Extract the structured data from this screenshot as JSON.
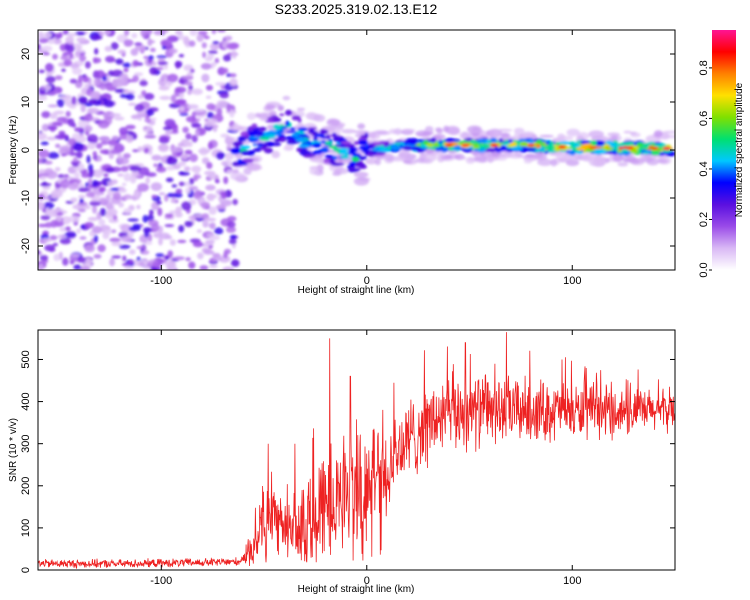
{
  "title": "S233.2025.319.02.13.E12",
  "chart_data": [
    {
      "type": "heatmap",
      "name": "spectrogram",
      "xlabel": "Height of straight line (km)",
      "ylabel": "Frequency (Hz)",
      "xlim": [
        -160,
        150
      ],
      "ylim": [
        -25,
        25
      ],
      "x_ticks": [
        -100,
        0,
        100
      ],
      "x_tick_labels": [
        "-100",
        "0",
        "100"
      ],
      "y_ticks": [
        -20,
        -10,
        0,
        10,
        20
      ],
      "y_tick_labels": [
        "-20",
        "-10",
        "0",
        "10",
        "20"
      ],
      "noise_region_x": [
        -160,
        -64
      ],
      "signal_band_center_hz": [
        {
          "x": -62,
          "f": -1
        },
        {
          "x": -55,
          "f": 2
        },
        {
          "x": -48,
          "f": 3
        },
        {
          "x": -40,
          "f": 5
        },
        {
          "x": -35,
          "f": 4
        },
        {
          "x": -30,
          "f": 2
        },
        {
          "x": -22,
          "f": 1
        },
        {
          "x": -14,
          "f": 0
        },
        {
          "x": -8,
          "f": -2
        },
        {
          "x": 0,
          "f": 0
        },
        {
          "x": 20,
          "f": 1
        },
        {
          "x": 40,
          "f": 1
        },
        {
          "x": 60,
          "f": 1
        },
        {
          "x": 80,
          "f": 1
        },
        {
          "x": 100,
          "f": 0.5
        },
        {
          "x": 120,
          "f": 0.5
        },
        {
          "x": 148,
          "f": 0.3
        }
      ],
      "colorbar": {
        "label": "Normalized spectral amplitude",
        "range": [
          0,
          0.95
        ],
        "ticks": [
          0,
          0.2,
          0.4,
          0.6,
          0.8
        ],
        "tick_labels": [
          "0.0",
          "0.2",
          "0.4",
          "0.6",
          "0.8"
        ],
        "colors": [
          "#ffffff",
          "#d9b8f5",
          "#9a4be8",
          "#5a10e0",
          "#0000ff",
          "#00c8ff",
          "#00e070",
          "#80e000",
          "#ffe000",
          "#ff8000",
          "#ff0000",
          "#ff1493"
        ]
      }
    },
    {
      "type": "line",
      "name": "snr",
      "xlabel": "Height of straight line (km)",
      "ylabel": "SNR (10 * v/v)",
      "xlim": [
        -160,
        150
      ],
      "ylim": [
        0,
        570
      ],
      "x_ticks": [
        -100,
        0,
        100
      ],
      "x_tick_labels": [
        "-100",
        "0",
        "100"
      ],
      "y_ticks": [
        0,
        100,
        200,
        300,
        400,
        500
      ],
      "y_tick_labels": [
        "0",
        "100",
        "200",
        "300",
        "400",
        "500"
      ],
      "series_color": "#ee2222",
      "envelope": [
        {
          "x": -160,
          "y": 15
        },
        {
          "x": -120,
          "y": 15
        },
        {
          "x": -75,
          "y": 18
        },
        {
          "x": -62,
          "y": 20
        },
        {
          "x": -55,
          "y": 60
        },
        {
          "x": -48,
          "y": 130
        },
        {
          "x": -40,
          "y": 90
        },
        {
          "x": -32,
          "y": 110
        },
        {
          "x": -24,
          "y": 150
        },
        {
          "x": -12,
          "y": 180
        },
        {
          "x": -4,
          "y": 200
        },
        {
          "x": 5,
          "y": 210
        },
        {
          "x": 15,
          "y": 280
        },
        {
          "x": 25,
          "y": 330
        },
        {
          "x": 35,
          "y": 360
        },
        {
          "x": 45,
          "y": 375
        },
        {
          "x": 60,
          "y": 380
        },
        {
          "x": 80,
          "y": 380
        },
        {
          "x": 100,
          "y": 375
        },
        {
          "x": 120,
          "y": 375
        },
        {
          "x": 150,
          "y": 380
        }
      ],
      "peaks": [
        {
          "x": -48,
          "y": 300
        },
        {
          "x": -35,
          "y": 300
        },
        {
          "x": -18,
          "y": 550
        },
        {
          "x": -8,
          "y": 460
        },
        {
          "x": 48,
          "y": 540
        },
        {
          "x": 68,
          "y": 565
        },
        {
          "x": 95,
          "y": 500
        }
      ]
    }
  ]
}
